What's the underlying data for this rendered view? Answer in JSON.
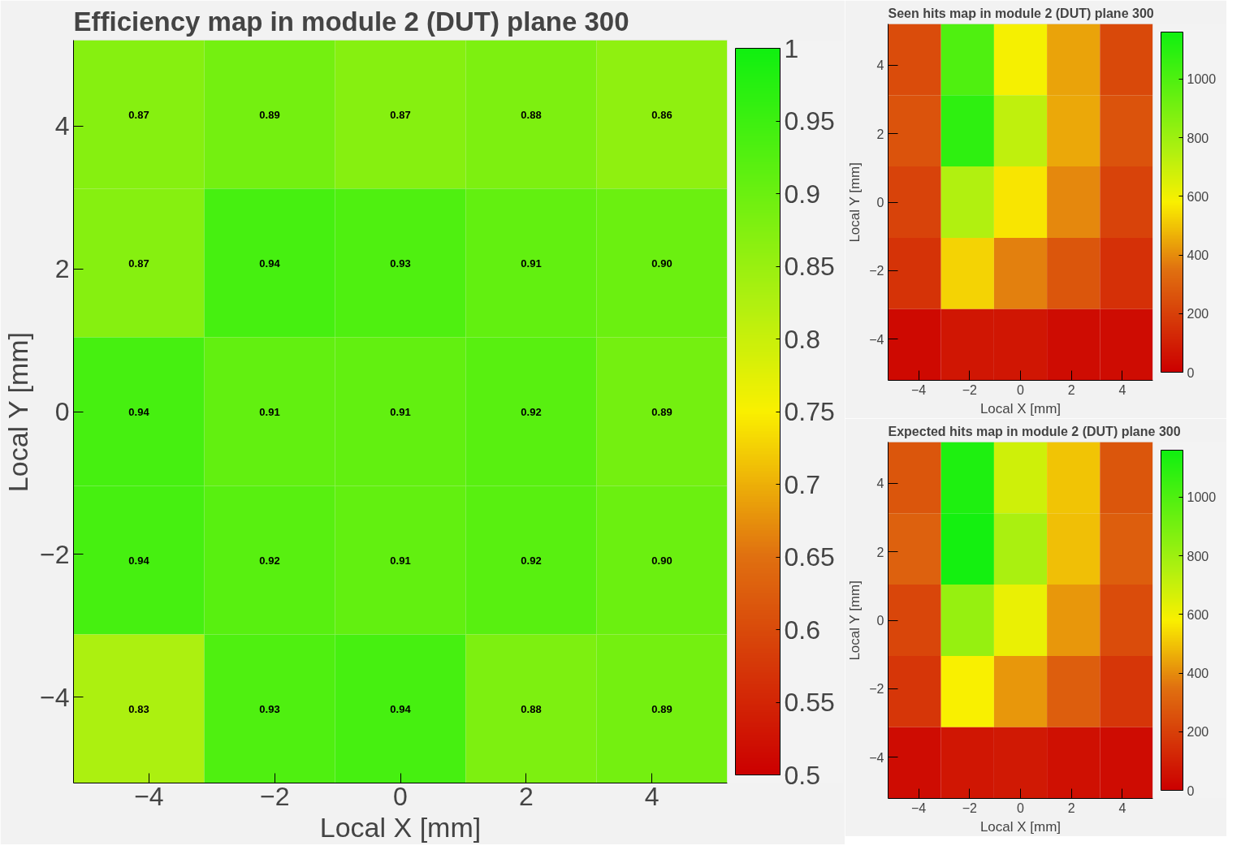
{
  "chart_data": [
    {
      "type": "heatmap",
      "title": "Efficiency map in module 2 (DUT) plane 300",
      "xlabel": "Local X [mm]",
      "ylabel": "Local Y [mm]",
      "x": [
        -4.16,
        -2.08,
        0,
        2.08,
        4.16
      ],
      "y": [
        4.16,
        2.08,
        0,
        -2.08,
        -4.16
      ],
      "xlim": [
        -5.2,
        5.2
      ],
      "ylim": [
        -5.2,
        5.2
      ],
      "xticks": [
        -4,
        -2,
        0,
        2,
        4
      ],
      "yticks": [
        -4,
        -2,
        0,
        2,
        4
      ],
      "cells": [
        [
          0.87,
          0.89,
          0.87,
          0.88,
          0.86
        ],
        [
          0.87,
          0.94,
          0.93,
          0.91,
          0.9
        ],
        [
          0.94,
          0.91,
          0.91,
          0.92,
          0.89
        ],
        [
          0.94,
          0.92,
          0.91,
          0.92,
          0.9
        ],
        [
          0.83,
          0.93,
          0.94,
          0.88,
          0.89
        ]
      ],
      "cell_labels": [
        [
          "0.87",
          "0.89",
          "0.87",
          "0.88",
          "0.86"
        ],
        [
          "0.87",
          "0.94",
          "0.93",
          "0.91",
          "0.90"
        ],
        [
          "0.94",
          "0.91",
          "0.91",
          "0.92",
          "0.89"
        ],
        [
          "0.94",
          "0.92",
          "0.91",
          "0.92",
          "0.90"
        ],
        [
          "0.83",
          "0.93",
          "0.94",
          "0.88",
          "0.89"
        ]
      ],
      "clim": [
        0.5,
        1
      ],
      "cticks": [
        0.5,
        0.55,
        0.6,
        0.65,
        0.7,
        0.75,
        0.8,
        0.85,
        0.9,
        0.95,
        1
      ]
    },
    {
      "type": "heatmap",
      "title": "Seen hits map in module 2 (DUT) plane 300",
      "xlabel": "Local X [mm]",
      "ylabel": "Local Y [mm]",
      "x": [
        -4.16,
        -2.08,
        0,
        2.08,
        4.16
      ],
      "y": [
        4.16,
        2.08,
        0,
        -2.08,
        -4.16
      ],
      "xlim": [
        -5.2,
        5.2
      ],
      "ylim": [
        -5.2,
        5.2
      ],
      "xticks": [
        -4,
        -2,
        0,
        2,
        4
      ],
      "yticks": [
        -4,
        -2,
        0,
        2,
        4
      ],
      "cells": [
        [
          240,
          1000,
          590,
          440,
          230
        ],
        [
          260,
          1080,
          720,
          450,
          260
        ],
        [
          210,
          750,
          560,
          390,
          210
        ],
        [
          160,
          530,
          380,
          270,
          150
        ],
        [
          30,
          70,
          70,
          40,
          40
        ]
      ],
      "clim": [
        0,
        1160
      ],
      "cticks": [
        0,
        200,
        400,
        600,
        800,
        1000
      ]
    },
    {
      "type": "heatmap",
      "title": "Expected hits map in module 2 (DUT) plane 300",
      "xlabel": "Local X [mm]",
      "ylabel": "Local Y [mm]",
      "x": [
        -4.16,
        -2.08,
        0,
        2.08,
        4.16
      ],
      "y": [
        4.16,
        2.08,
        0,
        -2.08,
        -4.16
      ],
      "xlim": [
        -5.2,
        5.2
      ],
      "ylim": [
        -5.2,
        5.2
      ],
      "xticks": [
        -4,
        -2,
        0,
        2,
        4
      ],
      "yticks": [
        -4,
        -2,
        0,
        2,
        4
      ],
      "cells": [
        [
          270,
          1120,
          680,
          500,
          270
        ],
        [
          300,
          1150,
          770,
          490,
          290
        ],
        [
          220,
          820,
          620,
          420,
          240
        ],
        [
          170,
          580,
          420,
          290,
          170
        ],
        [
          40,
          70,
          80,
          50,
          40
        ]
      ],
      "clim": [
        0,
        1160
      ],
      "cticks": [
        0,
        200,
        400,
        600,
        800,
        1000
      ]
    }
  ]
}
